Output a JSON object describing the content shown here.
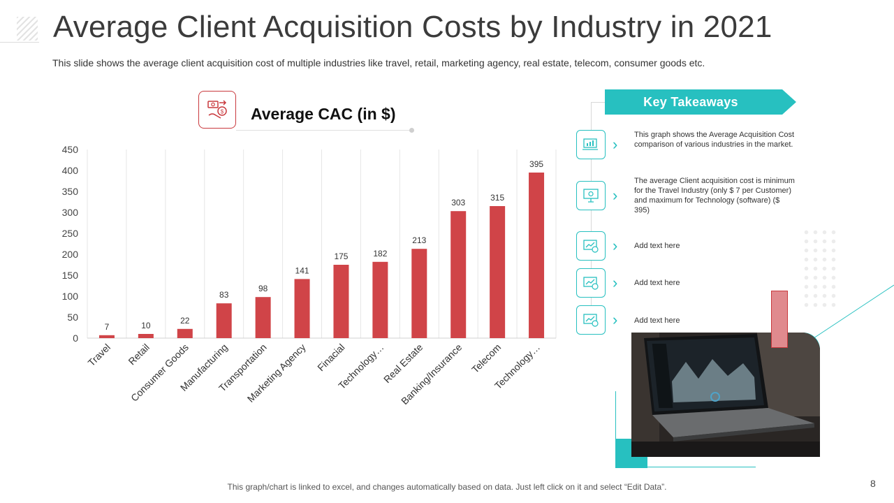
{
  "slide": {
    "title": "Average Client Acquisition Costs by Industry in 2021",
    "subtitle": "This slide shows the average client acquisition cost of multiple industries like travel, retail, marketing agency, real estate, telecom, consumer goods etc.",
    "footer": "This graph/chart is linked to excel, and changes automatically based on data. Just left click on it and select “Edit Data”.",
    "page_number": "8"
  },
  "chart_data": {
    "type": "bar",
    "title": "Average CAC (in $)",
    "categories": [
      "Travel",
      "Retail",
      "Consumer Goods",
      "Manufacturing",
      "Transportation",
      "Marketing Agency",
      "Finacial",
      "Technology…",
      "Real Estate",
      "Banking/Insurance",
      "Telecom",
      "Technology…"
    ],
    "values": [
      7,
      10,
      22,
      83,
      98,
      141,
      175,
      182,
      213,
      303,
      315,
      395
    ],
    "ylim": [
      0,
      450
    ],
    "yticks": [
      0,
      50,
      100,
      150,
      200,
      250,
      300,
      350,
      400,
      450
    ],
    "xlabel": "",
    "ylabel": "",
    "grid": "vertical",
    "bar_color": "#d04448"
  },
  "takeaways": {
    "heading": "Key Takeaways",
    "items": [
      {
        "icon": "bar-chart-laptop-icon",
        "text": "This graph shows the Average Acquisition Cost comparison of various industries in the market."
      },
      {
        "icon": "presentation-board-icon",
        "text": "The average Client acquisition cost is minimum for the Travel Industry (only $ 7 per Customer) and maximum for Technology (software) ($ 395)"
      },
      {
        "icon": "growth-chart-money-icon",
        "text": "Add text here"
      },
      {
        "icon": "growth-chart-money-icon",
        "text": "Add text here"
      },
      {
        "icon": "growth-chart-money-icon",
        "text": "Add text here"
      }
    ]
  },
  "colors": {
    "accent_teal": "#27c0c0",
    "accent_red": "#c9393d"
  }
}
